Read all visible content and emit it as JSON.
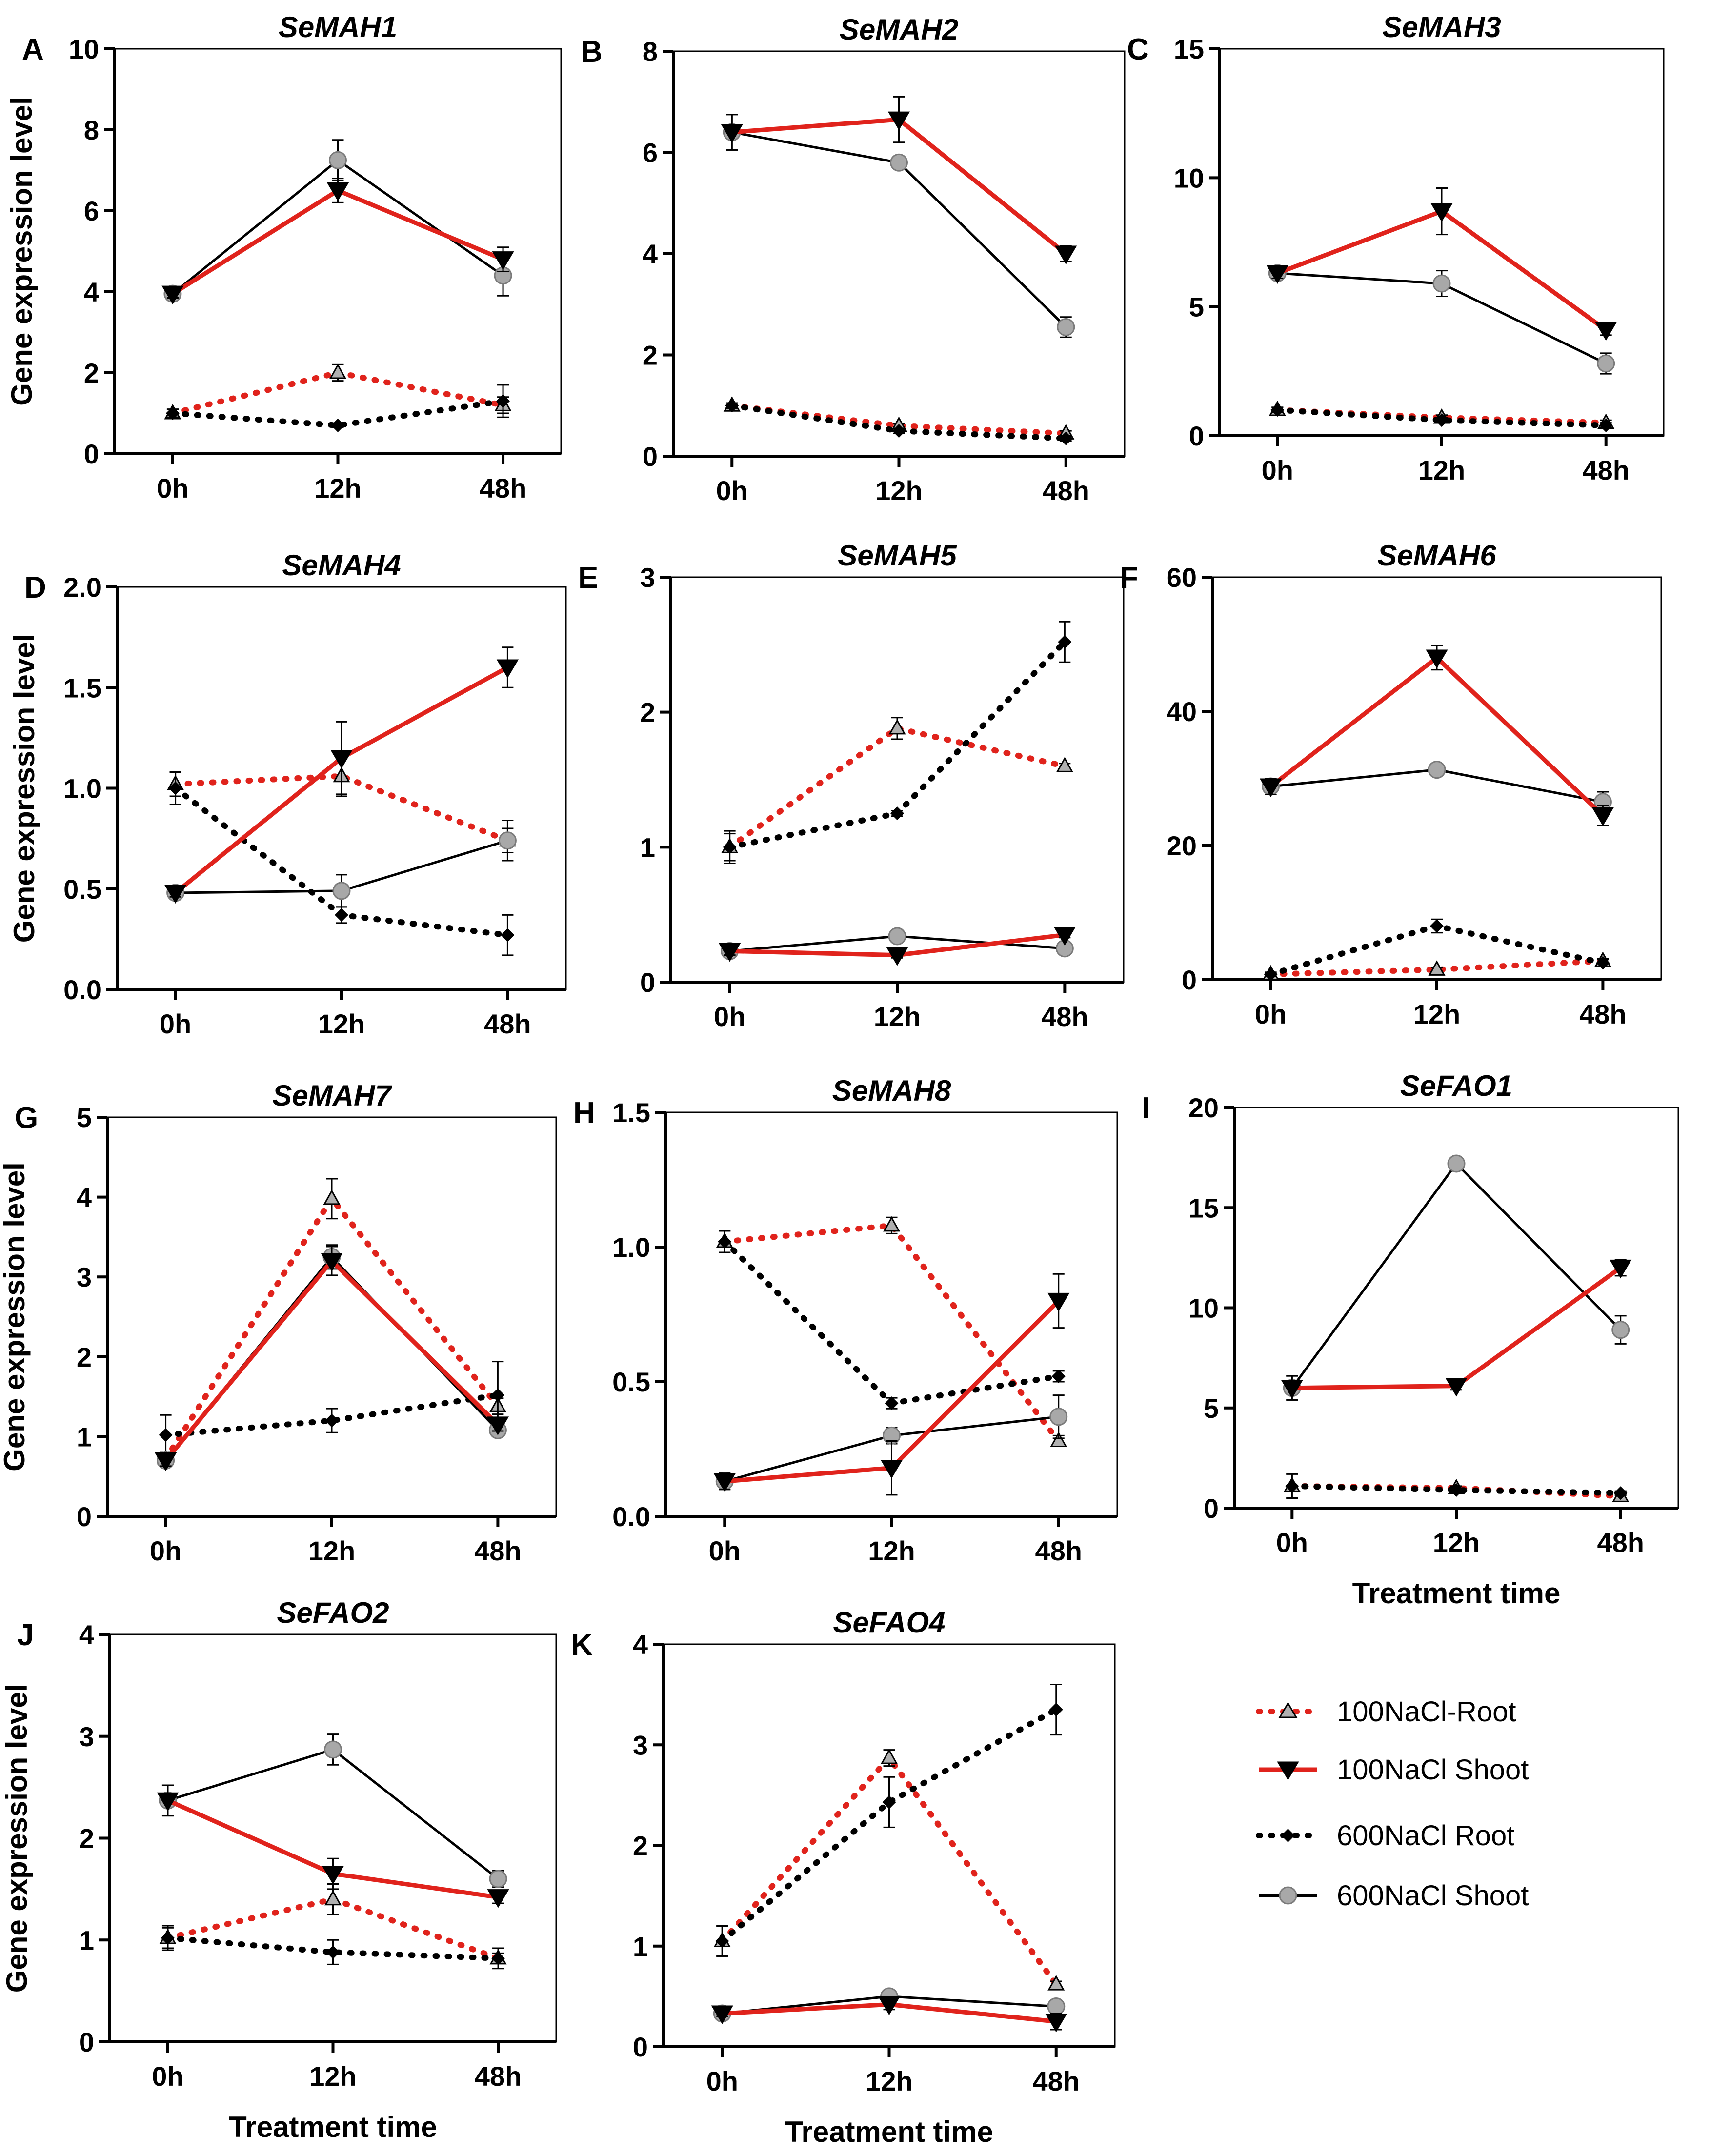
{
  "figure": {
    "y_axis_label": "Gene expression level",
    "x_axis_label": "Treatment time",
    "legend": [
      {
        "key": "r100",
        "label": "100NaCl-Root"
      },
      {
        "key": "s100",
        "label": "100NaCl Shoot"
      },
      {
        "key": "r600",
        "label": "600NaCl Root"
      },
      {
        "key": "s600",
        "label": "600NaCl Shoot"
      }
    ],
    "colors": {
      "red": "#e0231c",
      "black": "#000000",
      "grey_marker": "#a8a8a8",
      "frame": "#000000"
    }
  },
  "chart_data": [
    {
      "letter": "A",
      "title": "SeMAH1",
      "type": "line",
      "categories": [
        "0h",
        "12h",
        "48h"
      ],
      "ylim": [
        0,
        10
      ],
      "yticks": [
        "0",
        "2",
        "4",
        "6",
        "8",
        "10"
      ],
      "series": [
        {
          "key": "r100",
          "name": "100NaCl-Root",
          "values": [
            1.0,
            2.0,
            1.2
          ],
          "err": [
            0.1,
            0.2,
            0.2
          ]
        },
        {
          "key": "s100",
          "name": "100NaCl Shoot",
          "values": [
            3.95,
            6.5,
            4.8
          ],
          "err": [
            0.1,
            0.3,
            0.3
          ]
        },
        {
          "key": "r600",
          "name": "600NaCl Root",
          "values": [
            1.0,
            0.7,
            1.3
          ],
          "err": [
            0.1,
            0.05,
            0.4
          ]
        },
        {
          "key": "s600",
          "name": "600NaCl Shoot",
          "values": [
            3.95,
            7.25,
            4.4
          ],
          "err": [
            0.1,
            0.5,
            0.5
          ]
        }
      ]
    },
    {
      "letter": "B",
      "title": "SeMAH2",
      "type": "line",
      "categories": [
        "0h",
        "12h",
        "48h"
      ],
      "ylim": [
        0,
        8
      ],
      "yticks": [
        "0",
        "2",
        "4",
        "6",
        "8"
      ],
      "series": [
        {
          "key": "r100",
          "name": "100NaCl-Root",
          "values": [
            1.0,
            0.6,
            0.45
          ],
          "err": [
            0.05,
            0.05,
            0.05
          ]
        },
        {
          "key": "s100",
          "name": "100NaCl Shoot",
          "values": [
            6.4,
            6.65,
            4.0
          ],
          "err": [
            0.35,
            0.45,
            0.15
          ]
        },
        {
          "key": "r600",
          "name": "600NaCl Root",
          "values": [
            1.0,
            0.5,
            0.35
          ],
          "err": [
            0.05,
            0.05,
            0.05
          ]
        },
        {
          "key": "s600",
          "name": "600NaCl Shoot",
          "values": [
            6.4,
            5.8,
            2.55
          ],
          "err": [
            0.35,
            0.1,
            0.2
          ]
        }
      ]
    },
    {
      "letter": "C",
      "title": "SeMAH3",
      "type": "line",
      "categories": [
        "0h",
        "12h",
        "48h"
      ],
      "ylim": [
        0,
        15
      ],
      "yticks": [
        "0",
        "5",
        "10",
        "15"
      ],
      "series": [
        {
          "key": "r100",
          "name": "100NaCl-Root",
          "values": [
            1.0,
            0.7,
            0.5
          ],
          "err": [
            0.1,
            0.1,
            0.1
          ]
        },
        {
          "key": "s100",
          "name": "100NaCl Shoot",
          "values": [
            6.3,
            8.7,
            4.1
          ],
          "err": [
            0.2,
            0.9,
            0.2
          ]
        },
        {
          "key": "r600",
          "name": "600NaCl Root",
          "values": [
            1.0,
            0.6,
            0.4
          ],
          "err": [
            0.1,
            0.1,
            0.1
          ]
        },
        {
          "key": "s600",
          "name": "600NaCl Shoot",
          "values": [
            6.3,
            5.9,
            2.8
          ],
          "err": [
            0.2,
            0.5,
            0.4
          ]
        }
      ]
    },
    {
      "letter": "D",
      "title": "SeMAH4",
      "type": "line",
      "categories": [
        "0h",
        "12h",
        "48h"
      ],
      "ylim": [
        0,
        2
      ],
      "yticks": [
        "0.0",
        "0.5",
        "1.0",
        "1.5",
        "2.0"
      ],
      "series": [
        {
          "key": "r100",
          "name": "100NaCl-Root",
          "values": [
            1.02,
            1.06,
            0.74
          ],
          "err": [
            0.06,
            0.1,
            0.06
          ]
        },
        {
          "key": "s100",
          "name": "100NaCl Shoot",
          "values": [
            0.48,
            1.15,
            1.6
          ],
          "err": [
            0.02,
            0.18,
            0.1
          ]
        },
        {
          "key": "r600",
          "name": "600NaCl Root",
          "values": [
            1.0,
            0.37,
            0.27
          ],
          "err": [
            0.08,
            0.04,
            0.1
          ]
        },
        {
          "key": "s600",
          "name": "600NaCl Shoot",
          "values": [
            0.48,
            0.49,
            0.74
          ],
          "err": [
            0.02,
            0.08,
            0.1
          ]
        }
      ]
    },
    {
      "letter": "E",
      "title": "SeMAH5",
      "type": "line",
      "categories": [
        "0h",
        "12h",
        "48h"
      ],
      "ylim": [
        0,
        3
      ],
      "yticks": [
        "0",
        "1",
        "2",
        "3"
      ],
      "series": [
        {
          "key": "r100",
          "name": "100NaCl-Root",
          "values": [
            1.0,
            1.88,
            1.6
          ],
          "err": [
            0.1,
            0.08,
            0.02
          ]
        },
        {
          "key": "s100",
          "name": "100NaCl Shoot",
          "values": [
            0.23,
            0.2,
            0.35
          ],
          "err": [
            0.03,
            0.02,
            0.02
          ]
        },
        {
          "key": "r600",
          "name": "600NaCl Root",
          "values": [
            1.0,
            1.25,
            2.52
          ],
          "err": [
            0.12,
            0.02,
            0.15
          ]
        },
        {
          "key": "s600",
          "name": "600NaCl Shoot",
          "values": [
            0.23,
            0.34,
            0.25
          ],
          "err": [
            0.03,
            0.03,
            0.02
          ]
        }
      ]
    },
    {
      "letter": "F",
      "title": "SeMAH6",
      "type": "line",
      "categories": [
        "0h",
        "12h",
        "48h"
      ],
      "ylim": [
        0,
        60
      ],
      "yticks": [
        "0",
        "20",
        "40",
        "60"
      ],
      "series": [
        {
          "key": "r100",
          "name": "100NaCl-Root",
          "values": [
            0.8,
            1.5,
            2.8
          ],
          "err": [
            0.3,
            0.3,
            0.3
          ]
        },
        {
          "key": "s100",
          "name": "100NaCl Shoot",
          "values": [
            28.8,
            48.0,
            24.5
          ],
          "err": [
            1.2,
            1.8,
            1.5
          ]
        },
        {
          "key": "r600",
          "name": "600NaCl Root",
          "values": [
            0.8,
            8.0,
            2.5
          ],
          "err": [
            0.3,
            1.0,
            0.5
          ]
        },
        {
          "key": "s600",
          "name": "600NaCl Shoot",
          "values": [
            28.8,
            31.3,
            26.5
          ],
          "err": [
            1.2,
            0.5,
            1.5
          ]
        }
      ]
    },
    {
      "letter": "G",
      "title": "SeMAH7",
      "type": "line",
      "categories": [
        "0h",
        "12h",
        "48h"
      ],
      "ylim": [
        0,
        5
      ],
      "yticks": [
        "0",
        "1",
        "2",
        "3",
        "4",
        "5"
      ],
      "series": [
        {
          "key": "r100",
          "name": "100NaCl-Root",
          "values": [
            0.72,
            3.98,
            1.38
          ],
          "err": [
            0.08,
            0.25,
            0.1
          ]
        },
        {
          "key": "s100",
          "name": "100NaCl Shoot",
          "values": [
            0.7,
            3.2,
            1.15
          ],
          "err": [
            0.07,
            0.18,
            0.08
          ]
        },
        {
          "key": "r600",
          "name": "600NaCl Root",
          "values": [
            1.02,
            1.2,
            1.52
          ],
          "err": [
            0.25,
            0.15,
            0.42
          ]
        },
        {
          "key": "s600",
          "name": "600NaCl Shoot",
          "values": [
            0.7,
            3.25,
            1.08
          ],
          "err": [
            0.07,
            0.15,
            0.08
          ]
        }
      ]
    },
    {
      "letter": "H",
      "title": "SeMAH8",
      "type": "line",
      "categories": [
        "0h",
        "12h",
        "48h"
      ],
      "ylim": [
        0,
        1.5
      ],
      "yticks": [
        "0.0",
        "0.5",
        "1.0",
        "1.5"
      ],
      "series": [
        {
          "key": "r100",
          "name": "100NaCl-Root",
          "values": [
            1.02,
            1.08,
            0.28
          ],
          "err": [
            0.04,
            0.03,
            0.02
          ]
        },
        {
          "key": "s100",
          "name": "100NaCl Shoot",
          "values": [
            0.13,
            0.18,
            0.8
          ],
          "err": [
            0.03,
            0.1,
            0.1
          ]
        },
        {
          "key": "r600",
          "name": "600NaCl Root",
          "values": [
            1.02,
            0.42,
            0.52
          ],
          "err": [
            0.04,
            0.02,
            0.02
          ]
        },
        {
          "key": "s600",
          "name": "600NaCl Shoot",
          "values": [
            0.13,
            0.3,
            0.37
          ],
          "err": [
            0.03,
            0.03,
            0.08
          ]
        }
      ]
    },
    {
      "letter": "I",
      "title": "SeFAO1",
      "type": "line",
      "categories": [
        "0h",
        "12h",
        "48h"
      ],
      "ylim": [
        0,
        20
      ],
      "yticks": [
        "0",
        "5",
        "10",
        "15",
        "20"
      ],
      "series": [
        {
          "key": "r100",
          "name": "100NaCl-Root",
          "values": [
            1.1,
            1.0,
            0.6
          ],
          "err": [
            0.6,
            0.1,
            0.2
          ]
        },
        {
          "key": "s100",
          "name": "100NaCl Shoot",
          "values": [
            6.0,
            6.1,
            12.0
          ],
          "err": [
            0.6,
            0.2,
            0.4
          ]
        },
        {
          "key": "r600",
          "name": "600NaCl Root",
          "values": [
            1.1,
            0.9,
            0.75
          ],
          "err": [
            0.6,
            0.1,
            0.1
          ]
        },
        {
          "key": "s600",
          "name": "600NaCl Shoot",
          "values": [
            6.0,
            17.2,
            8.9
          ],
          "err": [
            0.6,
            0.1,
            0.7
          ]
        }
      ]
    },
    {
      "letter": "J",
      "title": "SeFAO2",
      "type": "line",
      "categories": [
        "0h",
        "12h",
        "48h"
      ],
      "ylim": [
        0,
        4
      ],
      "yticks": [
        "0",
        "1",
        "2",
        "3",
        "4"
      ],
      "series": [
        {
          "key": "r100",
          "name": "100NaCl-Root",
          "values": [
            1.02,
            1.4,
            0.82
          ],
          "err": [
            0.1,
            0.15,
            0.05
          ]
        },
        {
          "key": "s100",
          "name": "100NaCl Shoot",
          "values": [
            2.37,
            1.65,
            1.42
          ],
          "err": [
            0.15,
            0.15,
            0.06
          ]
        },
        {
          "key": "r600",
          "name": "600NaCl Root",
          "values": [
            1.02,
            0.88,
            0.82
          ],
          "err": [
            0.12,
            0.12,
            0.1
          ]
        },
        {
          "key": "s600",
          "name": "600NaCl Shoot",
          "values": [
            2.37,
            2.87,
            1.6
          ],
          "err": [
            0.15,
            0.15,
            0.08
          ]
        }
      ]
    },
    {
      "letter": "K",
      "title": "SeFAO4",
      "type": "line",
      "categories": [
        "0h",
        "12h",
        "48h"
      ],
      "ylim": [
        0,
        4
      ],
      "yticks": [
        "0",
        "1",
        "2",
        "3",
        "4"
      ],
      "series": [
        {
          "key": "r100",
          "name": "100NaCl-Root",
          "values": [
            1.05,
            2.87,
            0.62
          ],
          "err": [
            0.15,
            0.08,
            0.03
          ]
        },
        {
          "key": "s100",
          "name": "100NaCl Shoot",
          "values": [
            0.33,
            0.42,
            0.25
          ],
          "err": [
            0.03,
            0.05,
            0.08
          ]
        },
        {
          "key": "r600",
          "name": "600NaCl Root",
          "values": [
            1.05,
            2.43,
            3.35
          ],
          "err": [
            0.15,
            0.25,
            0.25
          ]
        },
        {
          "key": "s600",
          "name": "600NaCl Shoot",
          "values": [
            0.33,
            0.5,
            0.4
          ],
          "err": [
            0.03,
            0.03,
            0.03
          ]
        }
      ]
    }
  ]
}
